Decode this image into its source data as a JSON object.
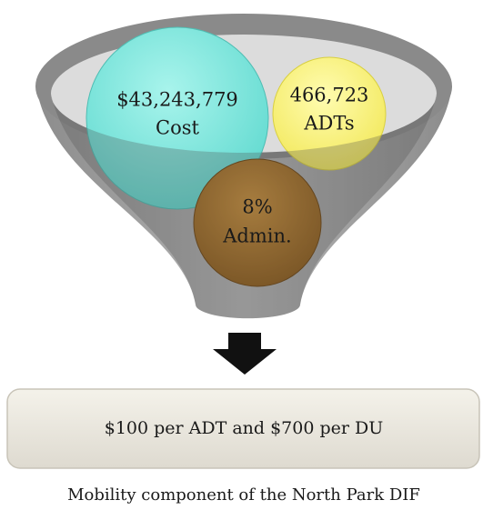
{
  "nodes": [
    {
      "value": "$43,243,779",
      "label": "Cost"
    },
    {
      "value": "466,723",
      "label": "ADTs"
    },
    {
      "value": "8%",
      "label": "Admin."
    }
  ],
  "result": "$100 per ADT and $700 per DU",
  "caption": "Mobility component of the North Park DIF"
}
